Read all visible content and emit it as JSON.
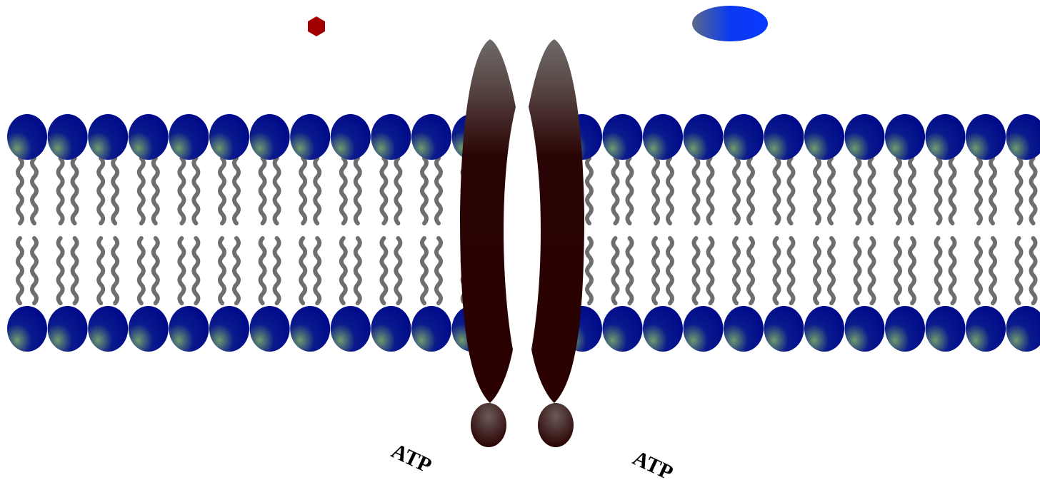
{
  "labels": {
    "atp_left": "ATP",
    "atp_right": "ATP"
  }
}
